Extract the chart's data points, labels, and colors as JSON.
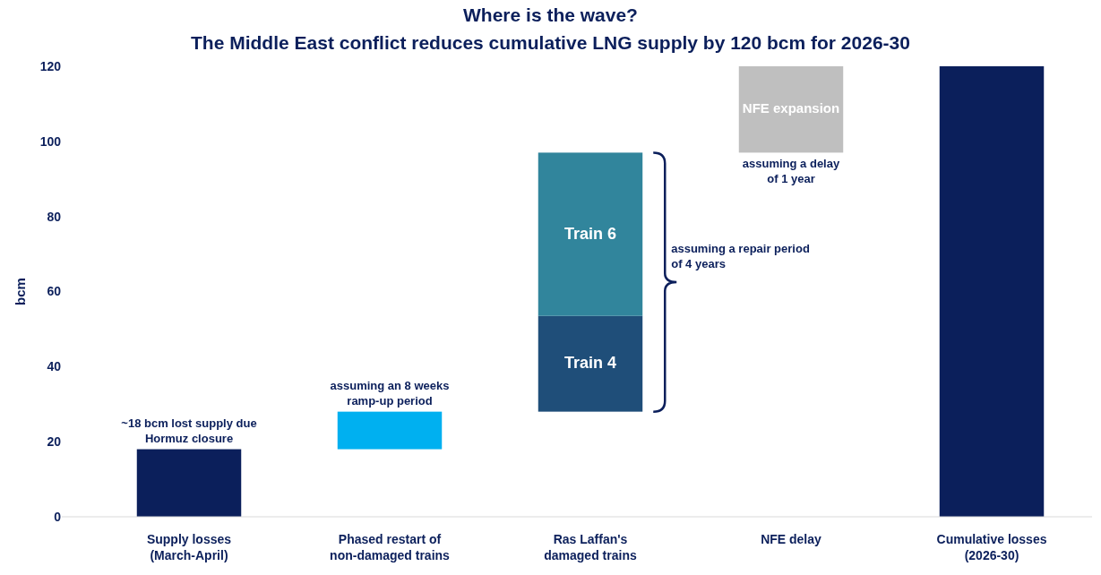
{
  "chart_data": {
    "type": "bar",
    "title": "Where is the wave?",
    "subtitle": "The Middle East conflict reduces cumulative LNG supply by 120 bcm for 2026-30",
    "ylabel": "bcm",
    "categories": [
      "Supply losses\n(March-April)",
      "Phased restart of\nnon-damaged trains",
      "Ras Laffan's\ndamaged trains",
      "NFE delay",
      "Cumulative losses\n(2026-30)"
    ],
    "series": [
      {
        "values": [
          18,
          10,
          25.5,
          23,
          120
        ],
        "base": [
          0,
          18,
          28,
          97,
          0
        ],
        "colors": [
          "#0b1f5b",
          "#00b0f0",
          "#1f4e79",
          "#bfbfbf",
          "#0b1f5b"
        ]
      },
      {
        "values": [
          null,
          null,
          43.5,
          null,
          null
        ],
        "base": [
          null,
          null,
          53.5,
          null,
          null
        ],
        "colors": [
          null,
          null,
          "#31859c",
          null,
          null
        ]
      }
    ],
    "ylim": [
      0,
      120
    ],
    "yticks": [
      0,
      20,
      40,
      60,
      80,
      100,
      120
    ],
    "annotations": [
      "~18 bcm lost supply due\nHormuz closure",
      "assuming an 8 weeks\nramp-up period",
      "Train 4",
      "Train 6",
      "assuming a repair period\nof 4 years",
      "NFE expansion",
      "assuming a delay\nof 1 year"
    ]
  }
}
